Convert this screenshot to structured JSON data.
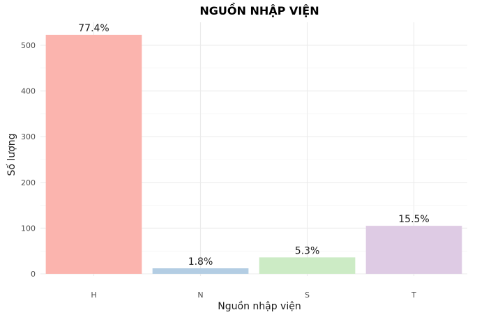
{
  "chart_data": {
    "type": "bar",
    "title": "NGUỒN NHẬP VIỆN",
    "xlabel": "Nguồn nhập viện",
    "ylabel": "Số lượng",
    "categories": [
      "H",
      "N",
      "S",
      "T"
    ],
    "values": [
      523,
      12,
      36,
      105
    ],
    "data_labels": [
      "77.4%",
      "1.8%",
      "5.3%",
      "15.5%"
    ],
    "colors": [
      "#FBB4AE",
      "#B3CDE3",
      "#CCEBC5",
      "#DECBE4"
    ],
    "ylim": [
      0,
      550
    ],
    "yticks": [
      0,
      100,
      200,
      300,
      400,
      500
    ],
    "ytick_labels": [
      "0",
      "100",
      "200",
      "300",
      "400",
      "500"
    ],
    "grid": true,
    "legend": "none"
  }
}
